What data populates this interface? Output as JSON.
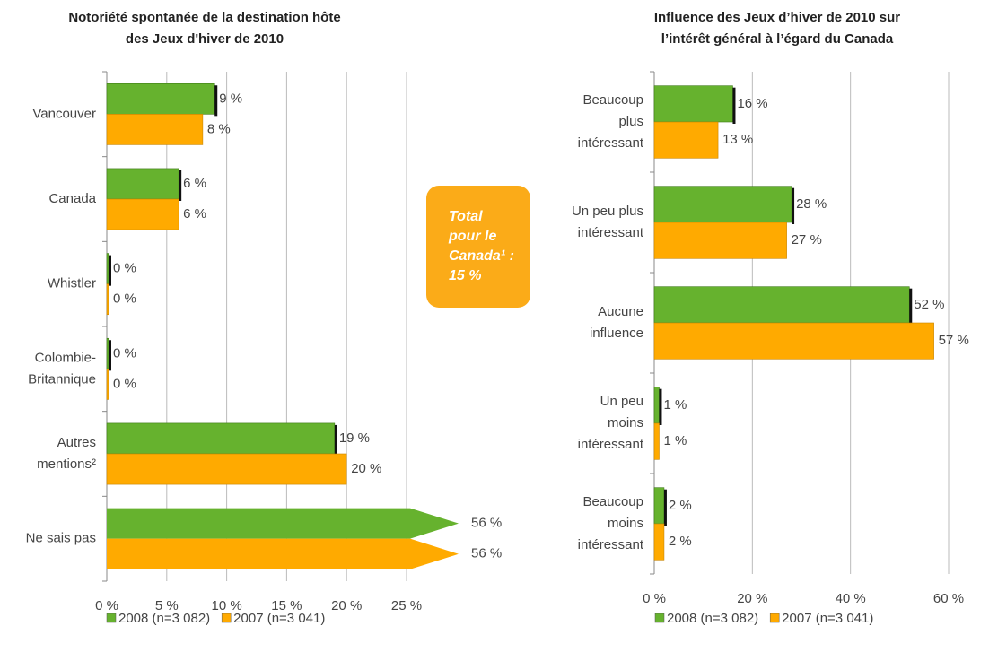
{
  "chart_data": [
    {
      "type": "barh",
      "title": "Notoriété spontanée de la destination hôte\ndes Jeux d'hiver de 2010",
      "categories": [
        "Vancouver",
        "Canada",
        "Whistler",
        "Colombie-\nBritannique",
        "Autres\nmentions²",
        "Ne sais pas"
      ],
      "series": [
        {
          "name": "2008 (n=3 082)",
          "color": "#66b22e",
          "values": [
            9,
            6,
            0,
            0,
            19,
            56
          ],
          "value_labels": [
            "9 %",
            "6 %",
            "0 %",
            "0 %",
            "19 %",
            "56 %"
          ]
        },
        {
          "name": "2007 (n=3 041)",
          "color": "#ffaa00",
          "values": [
            8,
            6,
            0,
            0,
            20,
            56
          ],
          "value_labels": [
            "8 %",
            "6 %",
            "0 %",
            "0 %",
            "20 %",
            "56 %"
          ]
        }
      ],
      "xlim": [
        0,
        25
      ],
      "xticks": [
        {
          "value": 0,
          "label": "0 %"
        },
        {
          "value": 5,
          "label": "5 %"
        },
        {
          "value": 10,
          "label": "10 %"
        },
        {
          "value": 15,
          "label": "15 %"
        },
        {
          "value": 20,
          "label": "20 %"
        },
        {
          "value": 25,
          "label": "25 %"
        }
      ],
      "grid": true,
      "legend": "bottom",
      "annotation": "Total\npour le\nCanada¹ :\n15 %"
    },
    {
      "type": "barh",
      "title": "Influence des Jeux d’hiver de 2010 sur\nl’intérêt général à l’égard du Canada",
      "categories": [
        "Beaucoup\nplus\nintéressant",
        "Un peu plus\nintéressant",
        "Aucune\ninfluence",
        "Un peu\nmoins\nintéressant",
        "Beaucoup\nmoins\nintéressant"
      ],
      "series": [
        {
          "name": "2008 (n=3 082)",
          "color": "#66b22e",
          "values": [
            16,
            28,
            52,
            1,
            2
          ],
          "value_labels": [
            "16 %",
            "28 %",
            "52 %",
            "1 %",
            "2 %"
          ]
        },
        {
          "name": "2007 (n=3 041)",
          "color": "#ffaa00",
          "values": [
            13,
            27,
            57,
            1,
            2
          ],
          "value_labels": [
            "13 %",
            "27 %",
            "57 %",
            "1 %",
            "2 %"
          ]
        }
      ],
      "xlim": [
        0,
        60
      ],
      "xticks": [
        {
          "value": 0,
          "label": "0 %"
        },
        {
          "value": 20,
          "label": "20 %"
        },
        {
          "value": 40,
          "label": "40 %"
        },
        {
          "value": 60,
          "label": "60 %"
        }
      ],
      "grid": true,
      "legend": "bottom"
    }
  ]
}
